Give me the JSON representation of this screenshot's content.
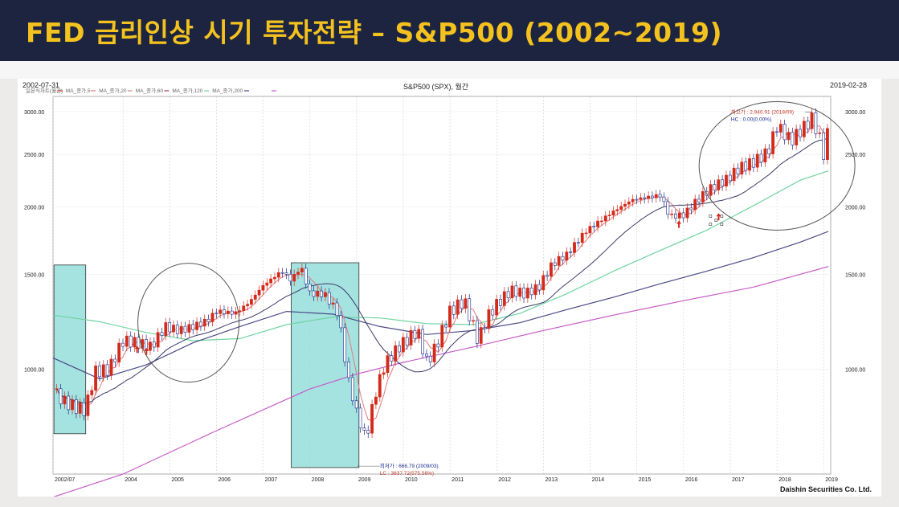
{
  "header": {
    "title": "FED 금리인상 시기 투자전략 – S&P500 (2002~2019)"
  },
  "chart_header": {
    "start_date": "2002-07-31",
    "title": "S&P500 (SPX), 월간",
    "end_date": "2019-02-28"
  },
  "legend": [
    {
      "label": "일본식차트(월간)",
      "color": "#d42a1a"
    },
    {
      "label": "MA_종가,5",
      "color": "#e07a7a"
    },
    {
      "label": "MA_종가,20",
      "color": "#c98a8a"
    },
    {
      "label": "MA_종가,60",
      "color": "#b04040"
    },
    {
      "label": "MA_종가,120",
      "color": "#6fd4a0"
    },
    {
      "label": "MA_종가,200",
      "color": "#4a4a86"
    },
    {
      "label": "",
      "color": "#c65bc6"
    }
  ],
  "annotations": {
    "high_label": "최고가 : 2,940.91 (2018/09)",
    "high_hc": "HC : 0.00(0.00%)",
    "low_label": "최저가 : 666.79 (2009/03)",
    "low_lc": "LC : 3837.72(575.56%)"
  },
  "footer": {
    "company": "Daishin Securities Co. Ltd."
  },
  "chart_data": {
    "type": "candlestick",
    "title": "S&P500 (SPX), 월간",
    "x_ticks": [
      "2002/07",
      "2004",
      "2005",
      "2006",
      "2007",
      "2008",
      "2009",
      "2010",
      "2011",
      "2012",
      "2013",
      "2014",
      "2015",
      "2016",
      "2017",
      "2018",
      "2019"
    ],
    "y_ticks": [
      "3000.00",
      "2500.00",
      "2000.00",
      "1500.00",
      "1000.00"
    ],
    "y_scale": "log",
    "ylim": [
      640,
      3200
    ],
    "close_points": [
      [
        2002.5,
        912
      ],
      [
        2002.75,
        870
      ],
      [
        2003.0,
        850
      ],
      [
        2003.2,
        840
      ],
      [
        2003.4,
        990
      ],
      [
        2003.7,
        1000
      ],
      [
        2004.0,
        1130
      ],
      [
        2004.3,
        1120
      ],
      [
        2004.6,
        1100
      ],
      [
        2004.9,
        1200
      ],
      [
        2005.2,
        1180
      ],
      [
        2005.5,
        1200
      ],
      [
        2005.8,
        1230
      ],
      [
        2006.0,
        1280
      ],
      [
        2006.4,
        1270
      ],
      [
        2006.7,
        1330
      ],
      [
        2007.0,
        1430
      ],
      [
        2007.4,
        1520
      ],
      [
        2007.6,
        1460
      ],
      [
        2007.8,
        1550
      ],
      [
        2008.0,
        1380
      ],
      [
        2008.3,
        1380
      ],
      [
        2008.6,
        1270
      ],
      [
        2008.8,
        970
      ],
      [
        2009.0,
        830
      ],
      [
        2009.2,
        740
      ],
      [
        2009.4,
        900
      ],
      [
        2009.6,
        1020
      ],
      [
        2009.9,
        1100
      ],
      [
        2010.3,
        1180
      ],
      [
        2010.5,
        1030
      ],
      [
        2010.7,
        1100
      ],
      [
        2011.0,
        1280
      ],
      [
        2011.3,
        1340
      ],
      [
        2011.6,
        1130
      ],
      [
        2011.8,
        1250
      ],
      [
        2012.0,
        1320
      ],
      [
        2012.3,
        1400
      ],
      [
        2012.6,
        1380
      ],
      [
        2012.9,
        1420
      ],
      [
        2013.2,
        1570
      ],
      [
        2013.5,
        1630
      ],
      [
        2013.9,
        1800
      ],
      [
        2014.2,
        1880
      ],
      [
        2014.5,
        1960
      ],
      [
        2014.9,
        2060
      ],
      [
        2015.2,
        2080
      ],
      [
        2015.5,
        2100
      ],
      [
        2015.7,
        1920
      ],
      [
        2016.0,
        1930
      ],
      [
        2016.3,
        2060
      ],
      [
        2016.6,
        2170
      ],
      [
        2016.9,
        2240
      ],
      [
        2017.2,
        2360
      ],
      [
        2017.5,
        2420
      ],
      [
        2017.8,
        2520
      ],
      [
        2018.0,
        2820
      ],
      [
        2018.3,
        2650
      ],
      [
        2018.6,
        2820
      ],
      [
        2018.75,
        2914
      ],
      [
        2018.9,
        2700
      ],
      [
        2019.0,
        2500
      ],
      [
        2019.1,
        2780
      ]
    ],
    "moving_averages": [
      {
        "name": "MA_종가,120",
        "color": "#6fd4a0",
        "points": [
          [
            2002.5,
            1260
          ],
          [
            2003.5,
            1225
          ],
          [
            2004.5,
            1170
          ],
          [
            2005.5,
            1130
          ],
          [
            2006.5,
            1140
          ],
          [
            2007.5,
            1210
          ],
          [
            2008.5,
            1250
          ],
          [
            2009.5,
            1245
          ],
          [
            2010.5,
            1215
          ],
          [
            2011.5,
            1210
          ],
          [
            2012.5,
            1270
          ],
          [
            2013.5,
            1380
          ],
          [
            2014.5,
            1520
          ],
          [
            2015.5,
            1660
          ],
          [
            2016.5,
            1810
          ],
          [
            2017.5,
            2010
          ],
          [
            2018.5,
            2240
          ],
          [
            2019.1,
            2330
          ]
        ]
      },
      {
        "name": "MA_종가,200",
        "color": "#4a4a86",
        "points": [
          [
            2002.5,
            1050
          ],
          [
            2003.5,
            960
          ],
          [
            2004.5,
            1020
          ],
          [
            2005.5,
            1120
          ],
          [
            2006.5,
            1200
          ],
          [
            2007.5,
            1280
          ],
          [
            2008.5,
            1265
          ],
          [
            2009.5,
            1200
          ],
          [
            2010.5,
            1160
          ],
          [
            2011.5,
            1180
          ],
          [
            2012.5,
            1220
          ],
          [
            2013.5,
            1290
          ],
          [
            2014.5,
            1360
          ],
          [
            2015.5,
            1440
          ],
          [
            2016.5,
            1520
          ],
          [
            2017.5,
            1610
          ],
          [
            2018.5,
            1720
          ],
          [
            2019.1,
            1800
          ]
        ]
      },
      {
        "name": "",
        "color": "#c65bc6",
        "points": [
          [
            2002.5,
            580
          ],
          [
            2004.0,
            640
          ],
          [
            2006.0,
            770
          ],
          [
            2008.0,
            920
          ],
          [
            2009.0,
            980
          ],
          [
            2010.0,
            1030
          ],
          [
            2011.5,
            1100
          ],
          [
            2013.0,
            1180
          ],
          [
            2014.5,
            1260
          ],
          [
            2016.0,
            1340
          ],
          [
            2017.5,
            1420
          ],
          [
            2019.1,
            1550
          ]
        ]
      }
    ]
  }
}
